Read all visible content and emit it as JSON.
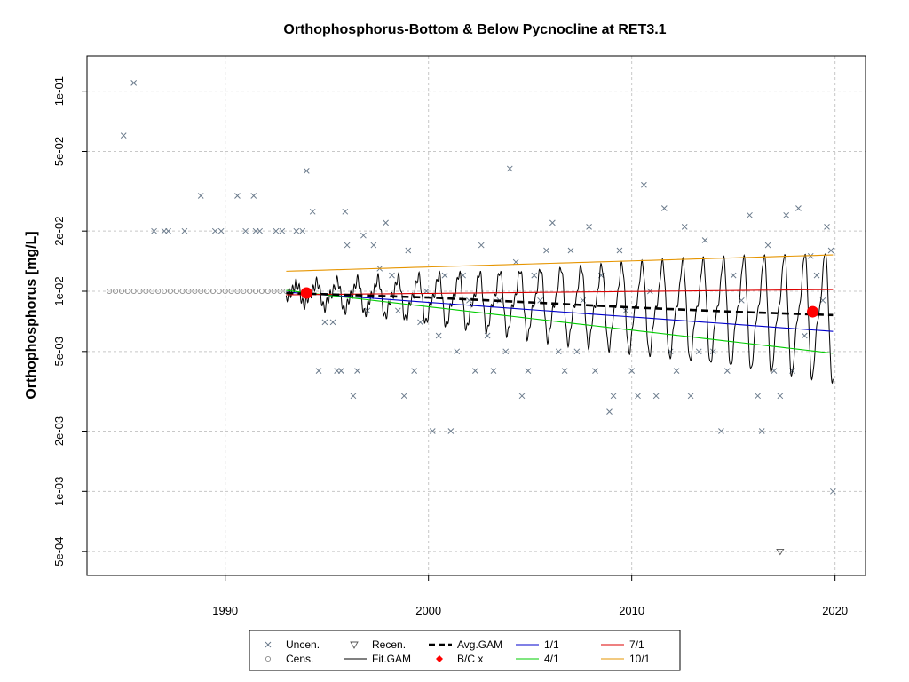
{
  "chart_data": {
    "type": "scatter",
    "title": "Orthophosphorus-Bottom & Below Pycnocline at RET3.1",
    "ylabel": "Orthophosphorus [mg/L]",
    "xlabel": "",
    "x_log": false,
    "y_log": true,
    "xlim": [
      1983.2,
      2021.5
    ],
    "ylim": [
      0.00038,
      0.15
    ],
    "x_ticks": [
      1990,
      2000,
      2010,
      2020
    ],
    "x_tick_labels": [
      "1990",
      "2000",
      "2010",
      "2020"
    ],
    "y_ticks": [
      0.0005,
      0.001,
      0.002,
      0.005,
      0.01,
      0.02,
      0.05,
      0.1
    ],
    "y_tick_labels": [
      "5e-04",
      "1e-03",
      "2e-03",
      "5e-03",
      "1e-02",
      "2e-02",
      "5e-02",
      "1e-01"
    ],
    "grid": true,
    "colors": {
      "uncen": "#6b7b8c",
      "cens": "#8c8c8c",
      "recen": "#555555",
      "fit_gam": "#000000",
      "avg_gam": "#000000",
      "bc": "#ff0000",
      "s1_1": "#0000cc",
      "s4_1": "#00cc00",
      "s7_1": "#dd0000",
      "s10_1": "#e69500"
    },
    "legend": {
      "position": "bottom-center",
      "entries": [
        {
          "label": "Uncen.",
          "symbol": "x"
        },
        {
          "label": "Recen.",
          "symbol": "triangle-down"
        },
        {
          "label": "Avg.GAM",
          "symbol": "dashed-line"
        },
        {
          "label": "1/1",
          "symbol": "line-blue"
        },
        {
          "label": "7/1",
          "symbol": "line-red"
        },
        {
          "label": "Cens.",
          "symbol": "circle"
        },
        {
          "label": "Fit.GAM",
          "symbol": "line"
        },
        {
          "label": "B/C x",
          "symbol": "diamond-red"
        },
        {
          "label": "4/1",
          "symbol": "line-green"
        },
        {
          "label": "10/1",
          "symbol": "line-orange"
        }
      ]
    },
    "uncensored_points": [
      [
        1985.0,
        0.06
      ],
      [
        1985.5,
        0.11
      ],
      [
        1986.5,
        0.02
      ],
      [
        1987.0,
        0.02
      ],
      [
        1987.2,
        0.02
      ],
      [
        1988.0,
        0.02
      ],
      [
        1988.8,
        0.03
      ],
      [
        1989.5,
        0.02
      ],
      [
        1989.8,
        0.02
      ],
      [
        1990.6,
        0.03
      ],
      [
        1991.0,
        0.02
      ],
      [
        1991.4,
        0.03
      ],
      [
        1991.5,
        0.02
      ],
      [
        1991.7,
        0.02
      ],
      [
        1992.5,
        0.02
      ],
      [
        1992.8,
        0.02
      ],
      [
        1993.5,
        0.02
      ],
      [
        1993.8,
        0.02
      ],
      [
        1994.0,
        0.04
      ],
      [
        1994.3,
        0.025
      ],
      [
        1994.6,
        0.004
      ],
      [
        1994.9,
        0.007
      ],
      [
        1995.3,
        0.007
      ],
      [
        1995.5,
        0.004
      ],
      [
        1995.7,
        0.004
      ],
      [
        1995.9,
        0.025
      ],
      [
        1996.0,
        0.017
      ],
      [
        1996.3,
        0.003
      ],
      [
        1996.5,
        0.004
      ],
      [
        1996.8,
        0.019
      ],
      [
        1997.0,
        0.008
      ],
      [
        1997.3,
        0.017
      ],
      [
        1997.6,
        0.013
      ],
      [
        1997.9,
        0.022
      ],
      [
        1998.2,
        0.012
      ],
      [
        1998.5,
        0.008
      ],
      [
        1998.8,
        0.003
      ],
      [
        1999.0,
        0.016
      ],
      [
        1999.3,
        0.004
      ],
      [
        1999.6,
        0.007
      ],
      [
        1999.9,
        0.01
      ],
      [
        2000.2,
        0.002
      ],
      [
        2000.5,
        0.006
      ],
      [
        2000.8,
        0.012
      ],
      [
        2001.1,
        0.002
      ],
      [
        2001.4,
        0.005
      ],
      [
        2001.7,
        0.012
      ],
      [
        2002.0,
        0.009
      ],
      [
        2002.3,
        0.004
      ],
      [
        2002.6,
        0.017
      ],
      [
        2002.9,
        0.006
      ],
      [
        2003.2,
        0.004
      ],
      [
        2003.5,
        0.009
      ],
      [
        2003.8,
        0.005
      ],
      [
        2004.0,
        0.041
      ],
      [
        2004.3,
        0.014
      ],
      [
        2004.6,
        0.003
      ],
      [
        2004.9,
        0.004
      ],
      [
        2005.2,
        0.012
      ],
      [
        2005.5,
        0.009
      ],
      [
        2005.8,
        0.016
      ],
      [
        2006.1,
        0.022
      ],
      [
        2006.4,
        0.005
      ],
      [
        2006.7,
        0.004
      ],
      [
        2007.0,
        0.016
      ],
      [
        2007.3,
        0.005
      ],
      [
        2007.6,
        0.009
      ],
      [
        2007.9,
        0.021
      ],
      [
        2008.2,
        0.004
      ],
      [
        2008.5,
        0.012
      ],
      [
        2008.9,
        0.0025
      ],
      [
        2009.1,
        0.003
      ],
      [
        2009.4,
        0.016
      ],
      [
        2009.7,
        0.008
      ],
      [
        2010.0,
        0.004
      ],
      [
        2010.3,
        0.003
      ],
      [
        2010.6,
        0.034
      ],
      [
        2010.9,
        0.01
      ],
      [
        2011.2,
        0.003
      ],
      [
        2011.6,
        0.026
      ],
      [
        2011.9,
        0.005
      ],
      [
        2012.2,
        0.004
      ],
      [
        2012.6,
        0.021
      ],
      [
        2012.9,
        0.003
      ],
      [
        2013.3,
        0.005
      ],
      [
        2013.6,
        0.018
      ],
      [
        2014.0,
        0.005
      ],
      [
        2014.4,
        0.002
      ],
      [
        2014.7,
        0.004
      ],
      [
        2015.0,
        0.012
      ],
      [
        2015.4,
        0.009
      ],
      [
        2015.8,
        0.024
      ],
      [
        2016.2,
        0.003
      ],
      [
        2016.4,
        0.002
      ],
      [
        2016.7,
        0.017
      ],
      [
        2017.0,
        0.004
      ],
      [
        2017.3,
        0.003
      ],
      [
        2017.6,
        0.024
      ],
      [
        2017.9,
        0.004
      ],
      [
        2018.2,
        0.026
      ],
      [
        2018.5,
        0.006
      ],
      [
        2018.8,
        0.015
      ],
      [
        2019.1,
        0.012
      ],
      [
        2019.4,
        0.009
      ],
      [
        2019.6,
        0.021
      ],
      [
        2019.8,
        0.016
      ],
      [
        2019.9,
        0.001
      ]
    ],
    "censored_points_value": 0.01,
    "censored_points_x": [
      1984.3,
      1984.6,
      1984.9,
      1985.2,
      1985.5,
      1985.8,
      1986.1,
      1986.4,
      1986.7,
      1987.0,
      1987.3,
      1987.6,
      1987.9,
      1988.2,
      1988.5,
      1988.8,
      1989.1,
      1989.4,
      1989.7,
      1990.0,
      1990.3,
      1990.6,
      1990.9,
      1991.2,
      1991.5,
      1991.8,
      1992.1,
      1992.4,
      1992.7,
      1993.0,
      1993.3
    ],
    "recensored_points": [
      [
        2017.3,
        0.0005
      ]
    ],
    "fit_gam": {
      "x_start": 1993.0,
      "x_end": 2019.9,
      "start_level": 0.0098,
      "end_level": 0.0075,
      "amp_start": 0.12,
      "amp_end": 0.85
    },
    "avg_gam": [
      [
        1993.0,
        0.0098
      ],
      [
        2000.0,
        0.0093
      ],
      [
        2005.0,
        0.0088
      ],
      [
        2010.0,
        0.0083
      ],
      [
        2015.0,
        0.0079
      ],
      [
        2019.9,
        0.0076
      ]
    ],
    "bc_points": [
      [
        1994.0,
        0.0098
      ],
      [
        2018.9,
        0.0079
      ]
    ],
    "trend_lines": [
      {
        "name": "1/1",
        "x": [
          1993.0,
          2019.9
        ],
        "y": [
          0.0099,
          0.0063
        ]
      },
      {
        "name": "4/1",
        "x": [
          1993.0,
          2019.9
        ],
        "y": [
          0.0101,
          0.0049
        ]
      },
      {
        "name": "7/1",
        "x": [
          1993.0,
          2019.9
        ],
        "y": [
          0.0096,
          0.0102
        ]
      },
      {
        "name": "10/1",
        "x": [
          1993.0,
          2019.9
        ],
        "y": [
          0.0126,
          0.0152
        ]
      }
    ]
  }
}
